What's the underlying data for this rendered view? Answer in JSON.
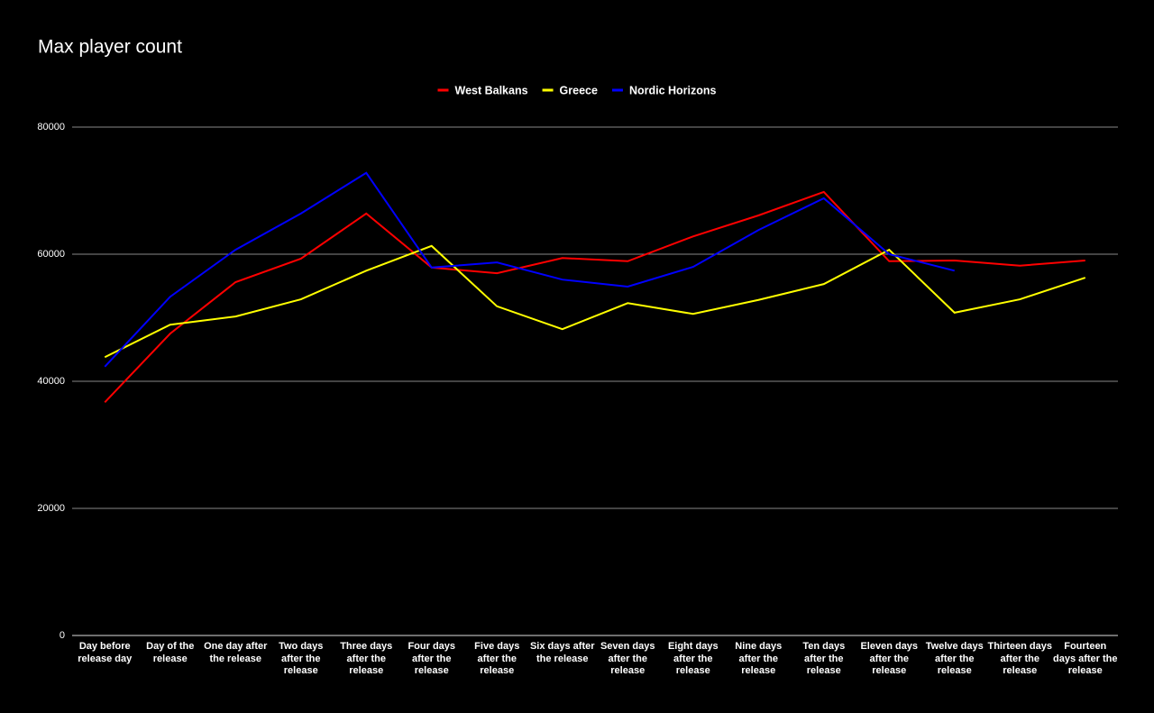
{
  "chart_data": {
    "type": "line",
    "title": "Max player count",
    "categories": [
      "Day before release day",
      "Day of the release",
      "One day after the release",
      "Two days after the release",
      "Three days after the release",
      "Four days after the release",
      "Five days after the release",
      "Six days after the release",
      "Seven days after the release",
      "Eight days after the release",
      "Nine days after the release",
      "Ten days after the release",
      "Eleven days after the release",
      "Twelve days after the release",
      "Thirteen days after the release",
      "Fourteen days after the release"
    ],
    "series": [
      {
        "name": "West Balkans",
        "color": "#ff0000",
        "values": [
          36700,
          47500,
          55600,
          59300,
          66400,
          57900,
          57000,
          59400,
          58900,
          62800,
          66100,
          69800,
          58900,
          59000,
          58200,
          59000
        ]
      },
      {
        "name": "Greece",
        "color": "#ffff00",
        "values": [
          43800,
          48900,
          50200,
          52900,
          57400,
          61300,
          51800,
          48200,
          52300,
          50600,
          52800,
          55300,
          60700,
          50800,
          52900,
          56300
        ]
      },
      {
        "name": "Nordic Horizons",
        "color": "#0000ff",
        "values": [
          42300,
          53300,
          60700,
          66400,
          72800,
          57900,
          58700,
          56000,
          54900,
          58000,
          63800,
          68800,
          60000,
          57400,
          null,
          null
        ]
      }
    ],
    "ylim": [
      0,
      80000
    ],
    "yticks": [
      0,
      20000,
      40000,
      60000,
      80000
    ],
    "grid": true,
    "legend": "top"
  }
}
